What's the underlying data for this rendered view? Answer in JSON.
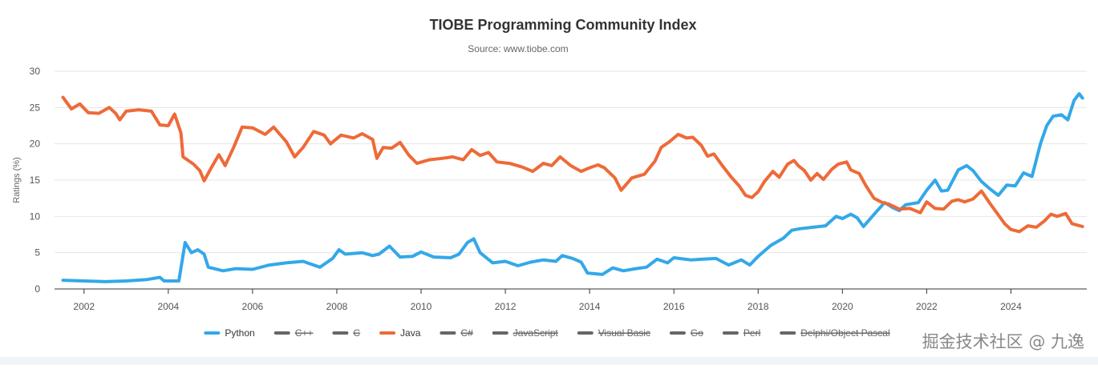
{
  "watermark": "掘金技术社区 @ 九逸",
  "chart_data": {
    "type": "line",
    "title": "TIOBE Programming Community Index",
    "subtitle": "Source: www.tiobe.com",
    "ylabel": "Ratings (%)",
    "xlabel": "",
    "xlim": [
      2001.3,
      2025.8
    ],
    "ylim": [
      0,
      30
    ],
    "yticks": [
      0,
      5,
      10,
      15,
      20,
      25,
      30
    ],
    "xticks": [
      2002,
      2004,
      2006,
      2008,
      2010,
      2012,
      2014,
      2016,
      2018,
      2020,
      2022,
      2024
    ],
    "grid": true,
    "legend_position": "bottom",
    "legend": [
      {
        "name": "Python",
        "color": "#33a8e8",
        "visible": true
      },
      {
        "name": "C++",
        "color": "#666666",
        "visible": false
      },
      {
        "name": "C",
        "color": "#666666",
        "visible": false
      },
      {
        "name": "Java",
        "color": "#ee6a38",
        "visible": true
      },
      {
        "name": "C#",
        "color": "#666666",
        "visible": false
      },
      {
        "name": "JavaScript",
        "color": "#666666",
        "visible": false
      },
      {
        "name": "Visual Basic",
        "color": "#666666",
        "visible": false
      },
      {
        "name": "Go",
        "color": "#666666",
        "visible": false
      },
      {
        "name": "Perl",
        "color": "#666666",
        "visible": false
      },
      {
        "name": "Delphi/Object Pascal",
        "color": "#666666",
        "visible": false
      }
    ],
    "series": [
      {
        "name": "Python",
        "color": "#33a8e8",
        "points": [
          [
            2001.5,
            1.2
          ],
          [
            2002.0,
            1.1
          ],
          [
            2002.5,
            1.0
          ],
          [
            2003.0,
            1.1
          ],
          [
            2003.5,
            1.3
          ],
          [
            2003.8,
            1.6
          ],
          [
            2003.9,
            1.1
          ],
          [
            2004.25,
            1.1
          ],
          [
            2004.4,
            6.4
          ],
          [
            2004.55,
            5.0
          ],
          [
            2004.7,
            5.4
          ],
          [
            2004.85,
            4.8
          ],
          [
            2004.95,
            3.0
          ],
          [
            2005.3,
            2.5
          ],
          [
            2005.6,
            2.8
          ],
          [
            2006.0,
            2.7
          ],
          [
            2006.4,
            3.3
          ],
          [
            2006.8,
            3.6
          ],
          [
            2007.2,
            3.8
          ],
          [
            2007.6,
            3.0
          ],
          [
            2007.9,
            4.2
          ],
          [
            2008.05,
            5.4
          ],
          [
            2008.2,
            4.8
          ],
          [
            2008.6,
            5.0
          ],
          [
            2008.85,
            4.6
          ],
          [
            2009.0,
            4.8
          ],
          [
            2009.25,
            5.9
          ],
          [
            2009.5,
            4.4
          ],
          [
            2009.8,
            4.5
          ],
          [
            2010.0,
            5.1
          ],
          [
            2010.3,
            4.4
          ],
          [
            2010.7,
            4.3
          ],
          [
            2010.9,
            4.8
          ],
          [
            2011.1,
            6.4
          ],
          [
            2011.25,
            6.9
          ],
          [
            2011.4,
            5.0
          ],
          [
            2011.7,
            3.6
          ],
          [
            2012.0,
            3.8
          ],
          [
            2012.3,
            3.2
          ],
          [
            2012.6,
            3.7
          ],
          [
            2012.9,
            4.0
          ],
          [
            2013.2,
            3.8
          ],
          [
            2013.35,
            4.6
          ],
          [
            2013.6,
            4.2
          ],
          [
            2013.8,
            3.7
          ],
          [
            2013.95,
            2.2
          ],
          [
            2014.3,
            2.0
          ],
          [
            2014.55,
            2.9
          ],
          [
            2014.8,
            2.5
          ],
          [
            2015.1,
            2.8
          ],
          [
            2015.35,
            3.0
          ],
          [
            2015.6,
            4.1
          ],
          [
            2015.85,
            3.6
          ],
          [
            2016.0,
            4.3
          ],
          [
            2016.4,
            4.0
          ],
          [
            2016.7,
            4.1
          ],
          [
            2017.0,
            4.2
          ],
          [
            2017.3,
            3.3
          ],
          [
            2017.6,
            4.0
          ],
          [
            2017.8,
            3.3
          ],
          [
            2018.0,
            4.5
          ],
          [
            2018.3,
            6.0
          ],
          [
            2018.6,
            7.0
          ],
          [
            2018.8,
            8.1
          ],
          [
            2019.0,
            8.3
          ],
          [
            2019.3,
            8.5
          ],
          [
            2019.6,
            8.7
          ],
          [
            2019.85,
            10.0
          ],
          [
            2020.0,
            9.7
          ],
          [
            2020.2,
            10.3
          ],
          [
            2020.35,
            9.8
          ],
          [
            2020.5,
            8.6
          ],
          [
            2020.8,
            10.6
          ],
          [
            2021.0,
            11.9
          ],
          [
            2021.2,
            11.2
          ],
          [
            2021.35,
            10.8
          ],
          [
            2021.5,
            11.6
          ],
          [
            2021.8,
            11.9
          ],
          [
            2022.0,
            13.6
          ],
          [
            2022.2,
            15.0
          ],
          [
            2022.35,
            13.5
          ],
          [
            2022.5,
            13.6
          ],
          [
            2022.75,
            16.4
          ],
          [
            2022.95,
            17.0
          ],
          [
            2023.1,
            16.3
          ],
          [
            2023.3,
            14.8
          ],
          [
            2023.5,
            13.8
          ],
          [
            2023.7,
            12.9
          ],
          [
            2023.9,
            14.3
          ],
          [
            2024.1,
            14.2
          ],
          [
            2024.3,
            16.0
          ],
          [
            2024.5,
            15.5
          ],
          [
            2024.7,
            20.0
          ],
          [
            2024.85,
            22.5
          ],
          [
            2025.0,
            23.8
          ],
          [
            2025.2,
            24.0
          ],
          [
            2025.35,
            23.3
          ],
          [
            2025.5,
            26.0
          ],
          [
            2025.62,
            26.9
          ],
          [
            2025.7,
            26.3
          ]
        ]
      },
      {
        "name": "Java",
        "color": "#ee6a38",
        "points": [
          [
            2001.5,
            26.4
          ],
          [
            2001.7,
            24.8
          ],
          [
            2001.9,
            25.5
          ],
          [
            2002.1,
            24.3
          ],
          [
            2002.35,
            24.2
          ],
          [
            2002.6,
            25.0
          ],
          [
            2002.75,
            24.2
          ],
          [
            2002.85,
            23.3
          ],
          [
            2003.0,
            24.5
          ],
          [
            2003.3,
            24.7
          ],
          [
            2003.6,
            24.5
          ],
          [
            2003.8,
            22.6
          ],
          [
            2004.0,
            22.5
          ],
          [
            2004.15,
            24.1
          ],
          [
            2004.3,
            21.5
          ],
          [
            2004.35,
            18.2
          ],
          [
            2004.6,
            17.2
          ],
          [
            2004.75,
            16.3
          ],
          [
            2004.85,
            14.9
          ],
          [
            2005.0,
            16.5
          ],
          [
            2005.2,
            18.5
          ],
          [
            2005.35,
            17.0
          ],
          [
            2005.55,
            19.5
          ],
          [
            2005.75,
            22.3
          ],
          [
            2006.0,
            22.2
          ],
          [
            2006.3,
            21.3
          ],
          [
            2006.5,
            22.3
          ],
          [
            2006.8,
            20.3
          ],
          [
            2007.0,
            18.2
          ],
          [
            2007.2,
            19.5
          ],
          [
            2007.45,
            21.7
          ],
          [
            2007.7,
            21.2
          ],
          [
            2007.85,
            20.0
          ],
          [
            2008.1,
            21.2
          ],
          [
            2008.4,
            20.8
          ],
          [
            2008.6,
            21.4
          ],
          [
            2008.85,
            20.6
          ],
          [
            2008.95,
            18.0
          ],
          [
            2009.1,
            19.5
          ],
          [
            2009.3,
            19.4
          ],
          [
            2009.5,
            20.2
          ],
          [
            2009.7,
            18.5
          ],
          [
            2009.9,
            17.3
          ],
          [
            2010.2,
            17.8
          ],
          [
            2010.5,
            18.0
          ],
          [
            2010.75,
            18.2
          ],
          [
            2011.0,
            17.8
          ],
          [
            2011.2,
            19.2
          ],
          [
            2011.4,
            18.4
          ],
          [
            2011.6,
            18.8
          ],
          [
            2011.8,
            17.5
          ],
          [
            2012.1,
            17.3
          ],
          [
            2012.4,
            16.8
          ],
          [
            2012.65,
            16.2
          ],
          [
            2012.9,
            17.3
          ],
          [
            2013.1,
            17.0
          ],
          [
            2013.3,
            18.2
          ],
          [
            2013.55,
            17.0
          ],
          [
            2013.8,
            16.2
          ],
          [
            2014.0,
            16.7
          ],
          [
            2014.2,
            17.1
          ],
          [
            2014.35,
            16.7
          ],
          [
            2014.6,
            15.3
          ],
          [
            2014.75,
            13.6
          ],
          [
            2015.0,
            15.3
          ],
          [
            2015.3,
            15.8
          ],
          [
            2015.55,
            17.6
          ],
          [
            2015.7,
            19.5
          ],
          [
            2015.9,
            20.3
          ],
          [
            2016.1,
            21.3
          ],
          [
            2016.3,
            20.8
          ],
          [
            2016.45,
            20.9
          ],
          [
            2016.65,
            19.8
          ],
          [
            2016.8,
            18.3
          ],
          [
            2016.95,
            18.6
          ],
          [
            2017.15,
            17.0
          ],
          [
            2017.35,
            15.5
          ],
          [
            2017.55,
            14.2
          ],
          [
            2017.7,
            12.9
          ],
          [
            2017.85,
            12.6
          ],
          [
            2018.0,
            13.4
          ],
          [
            2018.15,
            14.8
          ],
          [
            2018.35,
            16.2
          ],
          [
            2018.5,
            15.4
          ],
          [
            2018.7,
            17.2
          ],
          [
            2018.85,
            17.7
          ],
          [
            2018.95,
            17.0
          ],
          [
            2019.1,
            16.3
          ],
          [
            2019.25,
            15.0
          ],
          [
            2019.4,
            15.9
          ],
          [
            2019.55,
            15.1
          ],
          [
            2019.75,
            16.5
          ],
          [
            2019.9,
            17.2
          ],
          [
            2020.1,
            17.5
          ],
          [
            2020.2,
            16.4
          ],
          [
            2020.4,
            15.9
          ],
          [
            2020.55,
            14.3
          ],
          [
            2020.75,
            12.5
          ],
          [
            2020.95,
            11.9
          ],
          [
            2021.1,
            11.7
          ],
          [
            2021.35,
            11.0
          ],
          [
            2021.6,
            11.1
          ],
          [
            2021.85,
            10.5
          ],
          [
            2022.0,
            12.0
          ],
          [
            2022.2,
            11.1
          ],
          [
            2022.4,
            11.0
          ],
          [
            2022.6,
            12.1
          ],
          [
            2022.75,
            12.3
          ],
          [
            2022.9,
            12.0
          ],
          [
            2023.1,
            12.4
          ],
          [
            2023.3,
            13.5
          ],
          [
            2023.5,
            11.8
          ],
          [
            2023.7,
            10.2
          ],
          [
            2023.85,
            9.0
          ],
          [
            2024.0,
            8.2
          ],
          [
            2024.2,
            7.9
          ],
          [
            2024.4,
            8.7
          ],
          [
            2024.6,
            8.5
          ],
          [
            2024.8,
            9.4
          ],
          [
            2024.95,
            10.3
          ],
          [
            2025.1,
            10.0
          ],
          [
            2025.3,
            10.4
          ],
          [
            2025.45,
            9.0
          ],
          [
            2025.7,
            8.6
          ]
        ]
      }
    ]
  }
}
